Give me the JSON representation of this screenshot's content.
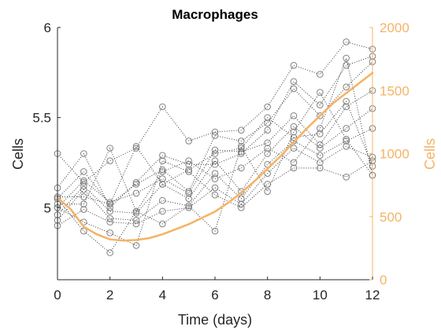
{
  "chart_data": {
    "type": "line",
    "title": "Macrophages",
    "xlabel": "Time (days)",
    "ylabel_left": "Cells",
    "ylabel_right": "Cells",
    "xlim": [
      0,
      12
    ],
    "ylim_left": [
      4.6,
      6.0
    ],
    "ylim_right": [
      0,
      2000
    ],
    "xticks": [
      "0",
      "2",
      "4",
      "6",
      "8",
      "10",
      "12"
    ],
    "yticks_left": [
      "5",
      "5.5",
      "6"
    ],
    "yticks_right": [
      "0",
      "500",
      "1000",
      "1500",
      "2000"
    ],
    "colors": {
      "replicates": "#808080",
      "mean": "#F5B366",
      "axis_left": "#262626",
      "axis_right": "#F5B366"
    },
    "x": [
      0,
      1,
      2,
      3,
      4,
      5,
      6,
      7,
      8,
      9,
      10,
      11,
      12
    ],
    "series": [
      {
        "values": [
          5.3,
          5.14,
          5.26,
          5.33,
          5.56,
          5.37,
          5.42,
          5.43,
          5.56,
          5.79,
          5.74,
          5.92,
          5.88
        ]
      },
      {
        "values": [
          5.11,
          5.3,
          5.0,
          5.14,
          5.29,
          5.24,
          5.24,
          5.3,
          5.43,
          5.7,
          5.57,
          5.79,
          5.84
        ]
      },
      {
        "values": [
          5.05,
          5.2,
          5.02,
          5.13,
          5.21,
          5.09,
          5.4,
          5.37,
          5.47,
          5.66,
          5.51,
          5.67,
          5.81
        ]
      },
      {
        "values": [
          5.0,
          5.15,
          5.03,
          5.08,
          5.16,
          5.08,
          5.32,
          5.31,
          5.36,
          5.51,
          5.35,
          5.56,
          5.65
        ]
      },
      {
        "values": [
          4.96,
          5.12,
          4.98,
          4.97,
          5.13,
          5.05,
          5.26,
          5.09,
          5.3,
          5.45,
          5.33,
          5.44,
          5.55
        ]
      },
      {
        "values": [
          4.93,
          5.1,
          4.94,
          4.93,
          5.04,
          5.01,
          5.19,
          5.05,
          5.24,
          5.37,
          5.29,
          5.37,
          5.44
        ]
      },
      {
        "values": [
          4.9,
          4.99,
          4.92,
          4.91,
          4.98,
          5.0,
          5.11,
          5.02,
          5.19,
          5.33,
          5.25,
          5.34,
          5.28
        ]
      },
      {
        "values": [
          5.0,
          4.92,
          4.86,
          4.79,
          5.26,
          5.2,
          5.07,
          5.0,
          5.13,
          5.22,
          5.22,
          5.17,
          5.26
        ]
      },
      {
        "values": [
          5.05,
          4.87,
          4.75,
          4.98,
          4.91,
          5.01,
          4.87,
          5.34,
          5.09,
          5.42,
          5.64,
          5.38,
          5.18
        ]
      },
      {
        "values": [
          5.02,
          5.02,
          5.33,
          4.98,
          5.2,
          5.26,
          5.16,
          5.22,
          5.33,
          5.25,
          5.44,
          5.83,
          5.18
        ]
      },
      {
        "values": [
          5.06,
          5.06,
          5.02,
          5.34,
          5.13,
          5.21,
          5.3,
          5.33,
          5.5,
          5.39,
          5.41,
          5.59,
          5.23
        ]
      }
    ],
    "mean_line": {
      "x": [
        0,
        0.5,
        1,
        1.5,
        2,
        2.5,
        3,
        3.5,
        4,
        4.5,
        5,
        5.5,
        6,
        6.5,
        7,
        7.5,
        8,
        8.5,
        9,
        9.5,
        10,
        10.5,
        11,
        11.5,
        12
      ],
      "values": [
        650,
        560,
        420,
        360,
        320,
        310,
        315,
        330,
        360,
        400,
        440,
        490,
        540,
        610,
        690,
        780,
        880,
        980,
        1090,
        1200,
        1300,
        1400,
        1480,
        1560,
        1640
      ]
    }
  }
}
